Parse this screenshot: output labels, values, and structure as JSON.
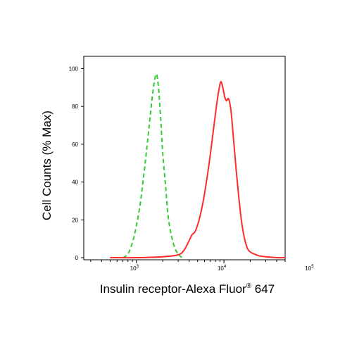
{
  "chart_data": {
    "type": "line",
    "title": "",
    "xlabel": "Insulin receptor-Alexa Fluor",
    "xlabel_superscript": "®",
    "xlabel_suffix": " 647",
    "ylabel": "Cell Counts (% Max)",
    "x_scale": "log",
    "xlim": [
      250,
      50000
    ],
    "ylim": [
      0,
      105
    ],
    "y_ticks": [
      0,
      20,
      40,
      60,
      80,
      100
    ],
    "y_tick_labels": [
      "0",
      "20",
      "40",
      "60",
      "80",
      "100"
    ],
    "x_major_ticks": [
      1000,
      10000,
      100000
    ],
    "x_tick_labels": [
      {
        "base": "10",
        "exp": "3"
      },
      {
        "base": "10",
        "exp": "4"
      },
      {
        "base": "10",
        "exp": "5"
      }
    ],
    "grid": false,
    "legend": "none",
    "series": [
      {
        "color": "#33cc33",
        "dash": "dashed",
        "x": [
          700,
          800,
          900,
          1000,
          1100,
          1200,
          1300,
          1400,
          1500,
          1600,
          1700,
          1800,
          1900,
          2000,
          2150,
          2300,
          2500,
          2750,
          3000,
          3300
        ],
        "y": [
          0,
          2,
          8,
          17,
          28,
          42,
          56,
          70,
          83,
          93,
          97,
          88,
          72,
          55,
          38,
          22,
          12,
          5,
          2,
          0
        ]
      },
      {
        "color": "#ff2b2b",
        "dash": "solid",
        "x": [
          500,
          1000,
          2000,
          3000,
          3500,
          4000,
          4300,
          4700,
          5200,
          5800,
          6400,
          7000,
          7600,
          8200,
          8700,
          9200,
          9700,
          10200,
          10700,
          11300,
          12000,
          12800,
          13700,
          14700,
          15800,
          17000,
          18500,
          20000,
          22000,
          25000,
          30000,
          40000,
          50000
        ],
        "y": [
          0,
          0,
          0.5,
          1.5,
          4,
          9,
          12,
          14,
          20,
          30,
          42,
          55,
          68,
          80,
          88,
          93,
          90,
          85,
          83,
          84,
          78,
          64,
          48,
          33,
          20,
          11,
          5,
          3,
          2,
          1,
          0.5,
          0,
          0
        ]
      }
    ]
  }
}
